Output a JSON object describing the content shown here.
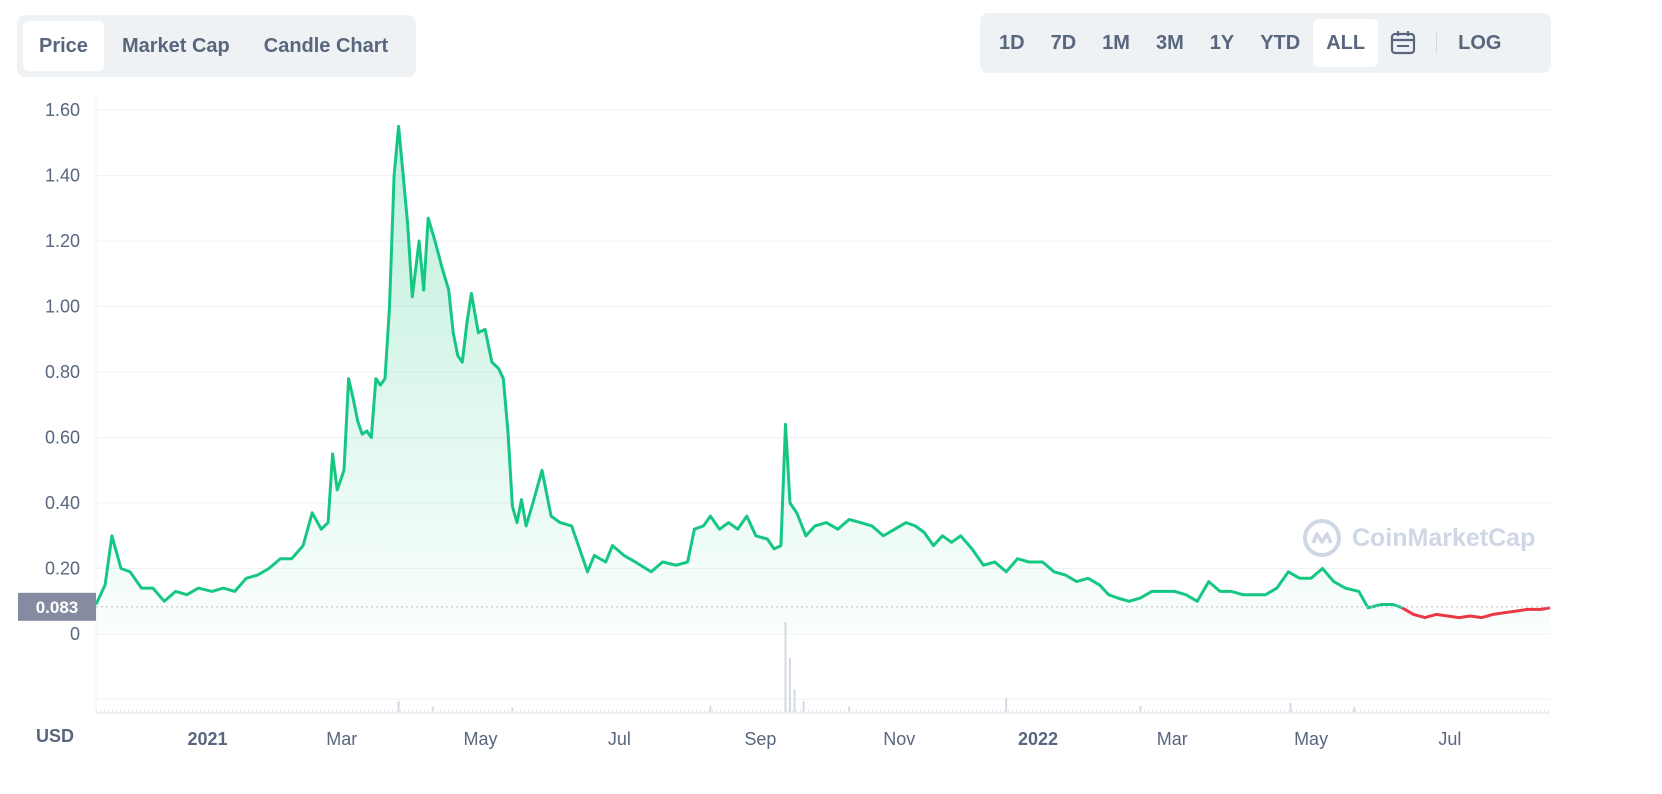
{
  "tabs": [
    {
      "label": "Price",
      "active": true
    },
    {
      "label": "Market Cap",
      "active": false
    },
    {
      "label": "Candle Chart",
      "active": false
    }
  ],
  "ranges": [
    "1D",
    "7D",
    "1M",
    "3M",
    "1Y",
    "YTD",
    "ALL"
  ],
  "active_range": "ALL",
  "log_label": "LOG",
  "watermark": "CoinMarketCap",
  "colors": {
    "up": "#16c784",
    "down": "#ea3943",
    "axis_text": "#58667e",
    "grid": "#eff2f5",
    "badge": "#858ca2"
  },
  "chart_data": {
    "type": "line",
    "currency": "USD",
    "current_price": "0.083",
    "y_ticks": [
      "0",
      "0.20",
      "0.40",
      "0.60",
      "0.80",
      "1.00",
      "1.20",
      "1.40",
      "1.60"
    ],
    "ylim": [
      0,
      1.6
    ],
    "x_ticks": [
      "2021",
      "Mar",
      "May",
      "Jul",
      "Sep",
      "Nov",
      "2022",
      "Mar",
      "May",
      "Jul"
    ],
    "grid": true,
    "series": [
      {
        "color_segments": [
          "green until 2022-06-10",
          "red after 2022-06-10"
        ],
        "points": [
          [
            "2020-11-13",
            0.09
          ],
          [
            "2020-11-17",
            0.15
          ],
          [
            "2020-11-20",
            0.3
          ],
          [
            "2020-11-24",
            0.2
          ],
          [
            "2020-11-28",
            0.19
          ],
          [
            "2020-12-03",
            0.14
          ],
          [
            "2020-12-08",
            0.14
          ],
          [
            "2020-12-13",
            0.1
          ],
          [
            "2020-12-18",
            0.13
          ],
          [
            "2020-12-23",
            0.12
          ],
          [
            "2020-12-28",
            0.14
          ],
          [
            "2021-01-03",
            0.13
          ],
          [
            "2021-01-08",
            0.14
          ],
          [
            "2021-01-13",
            0.13
          ],
          [
            "2021-01-18",
            0.17
          ],
          [
            "2021-01-23",
            0.18
          ],
          [
            "2021-01-28",
            0.2
          ],
          [
            "2021-02-02",
            0.23
          ],
          [
            "2021-02-07",
            0.23
          ],
          [
            "2021-02-12",
            0.27
          ],
          [
            "2021-02-16",
            0.37
          ],
          [
            "2021-02-20",
            0.32
          ],
          [
            "2021-02-23",
            0.34
          ],
          [
            "2021-02-25",
            0.55
          ],
          [
            "2021-02-27",
            0.44
          ],
          [
            "2021-03-02",
            0.5
          ],
          [
            "2021-03-04",
            0.78
          ],
          [
            "2021-03-06",
            0.72
          ],
          [
            "2021-03-08",
            0.65
          ],
          [
            "2021-03-10",
            0.61
          ],
          [
            "2021-03-12",
            0.62
          ],
          [
            "2021-03-14",
            0.6
          ],
          [
            "2021-03-16",
            0.78
          ],
          [
            "2021-03-18",
            0.76
          ],
          [
            "2021-03-20",
            0.78
          ],
          [
            "2021-03-22",
            1.0
          ],
          [
            "2021-03-24",
            1.4
          ],
          [
            "2021-03-26",
            1.55
          ],
          [
            "2021-03-28",
            1.4
          ],
          [
            "2021-03-30",
            1.25
          ],
          [
            "2021-04-01",
            1.03
          ],
          [
            "2021-04-04",
            1.2
          ],
          [
            "2021-04-06",
            1.05
          ],
          [
            "2021-04-08",
            1.27
          ],
          [
            "2021-04-11",
            1.2
          ],
          [
            "2021-04-14",
            1.12
          ],
          [
            "2021-04-17",
            1.05
          ],
          [
            "2021-04-19",
            0.92
          ],
          [
            "2021-04-21",
            0.85
          ],
          [
            "2021-04-23",
            0.83
          ],
          [
            "2021-04-25",
            0.95
          ],
          [
            "2021-04-27",
            1.04
          ],
          [
            "2021-04-30",
            0.92
          ],
          [
            "2021-05-03",
            0.93
          ],
          [
            "2021-05-06",
            0.83
          ],
          [
            "2021-05-09",
            0.81
          ],
          [
            "2021-05-11",
            0.78
          ],
          [
            "2021-05-13",
            0.62
          ],
          [
            "2021-05-15",
            0.39
          ],
          [
            "2021-05-17",
            0.34
          ],
          [
            "2021-05-19",
            0.41
          ],
          [
            "2021-05-21",
            0.33
          ],
          [
            "2021-05-24",
            0.4
          ],
          [
            "2021-05-28",
            0.5
          ],
          [
            "2021-06-01",
            0.36
          ],
          [
            "2021-06-05",
            0.34
          ],
          [
            "2021-06-10",
            0.33
          ],
          [
            "2021-06-14",
            0.25
          ],
          [
            "2021-06-17",
            0.19
          ],
          [
            "2021-06-20",
            0.24
          ],
          [
            "2021-06-25",
            0.22
          ],
          [
            "2021-06-28",
            0.27
          ],
          [
            "2021-07-03",
            0.24
          ],
          [
            "2021-07-08",
            0.22
          ],
          [
            "2021-07-15",
            0.19
          ],
          [
            "2021-07-20",
            0.22
          ],
          [
            "2021-07-26",
            0.21
          ],
          [
            "2021-07-31",
            0.22
          ],
          [
            "2021-08-03",
            0.32
          ],
          [
            "2021-08-07",
            0.33
          ],
          [
            "2021-08-10",
            0.36
          ],
          [
            "2021-08-14",
            0.32
          ],
          [
            "2021-08-18",
            0.34
          ],
          [
            "2021-08-22",
            0.32
          ],
          [
            "2021-08-26",
            0.36
          ],
          [
            "2021-08-30",
            0.3
          ],
          [
            "2021-09-04",
            0.29
          ],
          [
            "2021-09-07",
            0.26
          ],
          [
            "2021-09-10",
            0.27
          ],
          [
            "2021-09-12",
            0.64
          ],
          [
            "2021-09-14",
            0.4
          ],
          [
            "2021-09-17",
            0.37
          ],
          [
            "2021-09-21",
            0.3
          ],
          [
            "2021-09-25",
            0.33
          ],
          [
            "2021-09-30",
            0.34
          ],
          [
            "2021-10-05",
            0.32
          ],
          [
            "2021-10-10",
            0.35
          ],
          [
            "2021-10-15",
            0.34
          ],
          [
            "2021-10-20",
            0.33
          ],
          [
            "2021-10-25",
            0.3
          ],
          [
            "2021-10-30",
            0.32
          ],
          [
            "2021-11-04",
            0.34
          ],
          [
            "2021-11-08",
            0.33
          ],
          [
            "2021-11-12",
            0.31
          ],
          [
            "2021-11-16",
            0.27
          ],
          [
            "2021-11-20",
            0.3
          ],
          [
            "2021-11-24",
            0.28
          ],
          [
            "2021-11-28",
            0.3
          ],
          [
            "2021-12-03",
            0.26
          ],
          [
            "2021-12-08",
            0.21
          ],
          [
            "2021-12-13",
            0.22
          ],
          [
            "2021-12-18",
            0.19
          ],
          [
            "2021-12-23",
            0.23
          ],
          [
            "2021-12-28",
            0.22
          ],
          [
            "2022-01-03",
            0.22
          ],
          [
            "2022-01-08",
            0.19
          ],
          [
            "2022-01-13",
            0.18
          ],
          [
            "2022-01-18",
            0.16
          ],
          [
            "2022-01-23",
            0.17
          ],
          [
            "2022-01-28",
            0.15
          ],
          [
            "2022-02-01",
            0.12
          ],
          [
            "2022-02-05",
            0.11
          ],
          [
            "2022-02-10",
            0.1
          ],
          [
            "2022-02-15",
            0.11
          ],
          [
            "2022-02-20",
            0.13
          ],
          [
            "2022-02-25",
            0.13
          ],
          [
            "2022-03-02",
            0.13
          ],
          [
            "2022-03-07",
            0.12
          ],
          [
            "2022-03-12",
            0.1
          ],
          [
            "2022-03-17",
            0.16
          ],
          [
            "2022-03-22",
            0.13
          ],
          [
            "2022-03-27",
            0.13
          ],
          [
            "2022-04-01",
            0.12
          ],
          [
            "2022-04-06",
            0.12
          ],
          [
            "2022-04-11",
            0.12
          ],
          [
            "2022-04-16",
            0.14
          ],
          [
            "2022-04-21",
            0.19
          ],
          [
            "2022-04-26",
            0.17
          ],
          [
            "2022-05-01",
            0.17
          ],
          [
            "2022-05-06",
            0.2
          ],
          [
            "2022-05-11",
            0.16
          ],
          [
            "2022-05-16",
            0.14
          ],
          [
            "2022-05-22",
            0.13
          ],
          [
            "2022-05-26",
            0.08
          ],
          [
            "2022-06-01",
            0.09
          ],
          [
            "2022-06-06",
            0.09
          ],
          [
            "2022-06-10",
            0.08
          ],
          [
            "2022-06-15",
            0.06
          ],
          [
            "2022-06-20",
            0.05
          ],
          [
            "2022-06-25",
            0.06
          ],
          [
            "2022-06-30",
            0.055
          ],
          [
            "2022-07-05",
            0.05
          ],
          [
            "2022-07-10",
            0.055
          ],
          [
            "2022-07-15",
            0.05
          ],
          [
            "2022-07-20",
            0.06
          ],
          [
            "2022-07-25",
            0.065
          ],
          [
            "2022-07-30",
            0.07
          ],
          [
            "2022-08-04",
            0.075
          ],
          [
            "2022-08-10",
            0.075
          ],
          [
            "2022-08-14",
            0.08
          ]
        ]
      }
    ],
    "volume_series": {
      "description": "relative volume bars, spike near 2021-09-12",
      "points": [
        [
          "2021-03-26",
          0.12
        ],
        [
          "2021-04-10",
          0.06
        ],
        [
          "2021-05-15",
          0.05
        ],
        [
          "2021-08-10",
          0.07
        ],
        [
          "2021-09-12",
          1.0
        ],
        [
          "2021-09-14",
          0.6
        ],
        [
          "2021-09-16",
          0.25
        ],
        [
          "2021-09-20",
          0.12
        ],
        [
          "2021-10-10",
          0.06
        ],
        [
          "2021-12-18",
          0.16
        ],
        [
          "2022-02-15",
          0.07
        ],
        [
          "2022-04-22",
          0.1
        ],
        [
          "2022-05-20",
          0.06
        ]
      ]
    }
  }
}
